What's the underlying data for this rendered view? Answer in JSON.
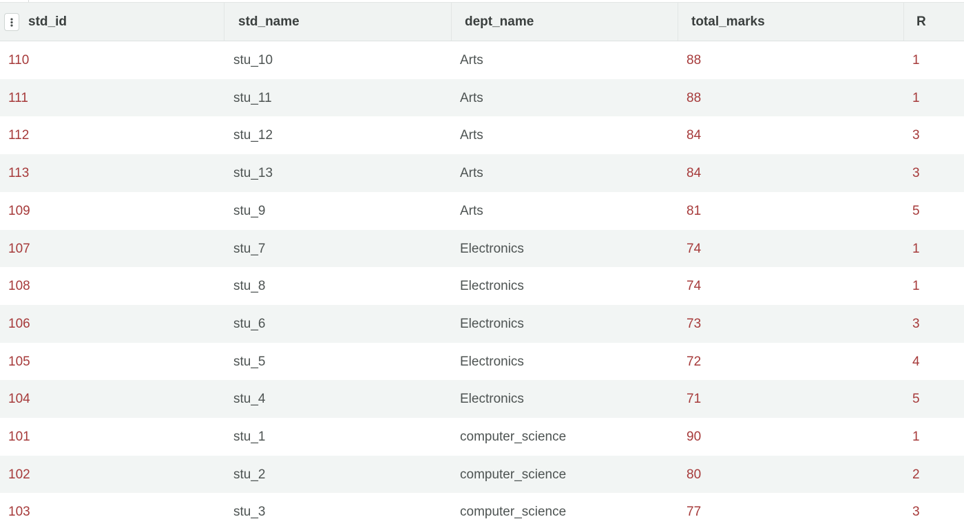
{
  "columns": [
    "std_id",
    "std_name",
    "dept_name",
    "total_marks",
    "R"
  ],
  "rows": [
    {
      "std_id": "110",
      "std_name": "stu_10",
      "dept_name": "Arts",
      "total_marks": "88",
      "R": "1"
    },
    {
      "std_id": "111",
      "std_name": "stu_11",
      "dept_name": "Arts",
      "total_marks": "88",
      "R": "1"
    },
    {
      "std_id": "112",
      "std_name": "stu_12",
      "dept_name": "Arts",
      "total_marks": "84",
      "R": "3"
    },
    {
      "std_id": "113",
      "std_name": "stu_13",
      "dept_name": "Arts",
      "total_marks": "84",
      "R": "3"
    },
    {
      "std_id": "109",
      "std_name": "stu_9",
      "dept_name": "Arts",
      "total_marks": "81",
      "R": "5"
    },
    {
      "std_id": "107",
      "std_name": "stu_7",
      "dept_name": "Electronics",
      "total_marks": "74",
      "R": "1"
    },
    {
      "std_id": "108",
      "std_name": "stu_8",
      "dept_name": "Electronics",
      "total_marks": "74",
      "R": "1"
    },
    {
      "std_id": "106",
      "std_name": "stu_6",
      "dept_name": "Electronics",
      "total_marks": "73",
      "R": "3"
    },
    {
      "std_id": "105",
      "std_name": "stu_5",
      "dept_name": "Electronics",
      "total_marks": "72",
      "R": "4"
    },
    {
      "std_id": "104",
      "std_name": "stu_4",
      "dept_name": "Electronics",
      "total_marks": "71",
      "R": "5"
    },
    {
      "std_id": "101",
      "std_name": "stu_1",
      "dept_name": "computer_science",
      "total_marks": "90",
      "R": "1"
    },
    {
      "std_id": "102",
      "std_name": "stu_2",
      "dept_name": "computer_science",
      "total_marks": "80",
      "R": "2"
    },
    {
      "std_id": "103",
      "std_name": "stu_3",
      "dept_name": "computer_science",
      "total_marks": "77",
      "R": "3"
    }
  ],
  "colors": {
    "numeric_text": "#a63a3a",
    "string_text": "#4d5352",
    "header_bg": "#f0f3f2",
    "stripe_bg": "#f2f5f4"
  },
  "icons": {
    "column_menu": "vertical-dots-icon"
  }
}
